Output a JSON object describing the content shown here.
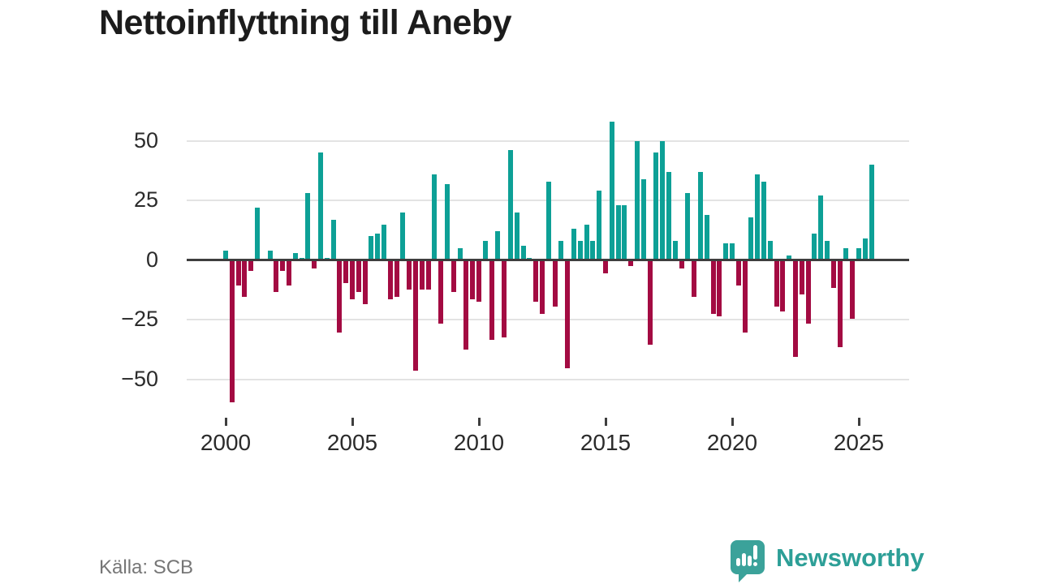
{
  "title": "Nettoinflyttning till Aneby",
  "source_label": "Källa: SCB",
  "brand": {
    "name": "Newsworthy",
    "color": "#2d9f97"
  },
  "colors": {
    "positive_bar": "#0da096",
    "negative_bar": "#a30b42",
    "gridline": "#e3e3e3",
    "zero_line": "#3e3e3e",
    "axis_text": "#2b2b2b",
    "title_text": "#1c1c1c",
    "source_text": "#767676"
  },
  "chart_data": {
    "type": "bar",
    "title": "Nettoinflyttning till Aneby",
    "frequency": "quarterly",
    "start": "2000Q1",
    "end": "2025Q3",
    "grid": "horizontal",
    "legend": "none",
    "y_ticks": [
      50,
      25,
      0,
      -25,
      -50
    ],
    "ylim": [
      -62,
      62
    ],
    "x_tick_years": [
      2000,
      2005,
      2010,
      2015,
      2020,
      2025
    ],
    "x_tick_labels": [
      "2000",
      "2005",
      "2010",
      "2015",
      "2020",
      "2025"
    ],
    "series": [
      {
        "name": "Nettoinflyttning",
        "values": [
          4,
          -59,
          -10,
          -15,
          -4,
          22,
          0,
          4,
          -13,
          -4,
          -10,
          3,
          1,
          28,
          -3,
          45,
          1,
          17,
          -30,
          -9,
          -16,
          -13,
          -18,
          10,
          11,
          15,
          -16,
          -15,
          20,
          -12,
          -46,
          -12,
          -12,
          36,
          -26,
          32,
          -13,
          5,
          -37,
          -16,
          -17,
          8,
          -33,
          12,
          -32,
          46,
          20,
          6,
          1,
          -17,
          -22,
          33,
          -19,
          8,
          -45,
          13,
          8,
          15,
          8,
          29,
          -5,
          58,
          23,
          23,
          -2,
          50,
          34,
          -35,
          45,
          50,
          37,
          8,
          -3,
          28,
          -15,
          37,
          19,
          -22,
          -23,
          7,
          7,
          -10,
          -30,
          18,
          36,
          33,
          8,
          -19,
          -21,
          2,
          -40,
          -14,
          -26,
          11,
          27,
          8,
          -11,
          -36,
          5,
          -24,
          5,
          9,
          40
        ]
      }
    ]
  }
}
